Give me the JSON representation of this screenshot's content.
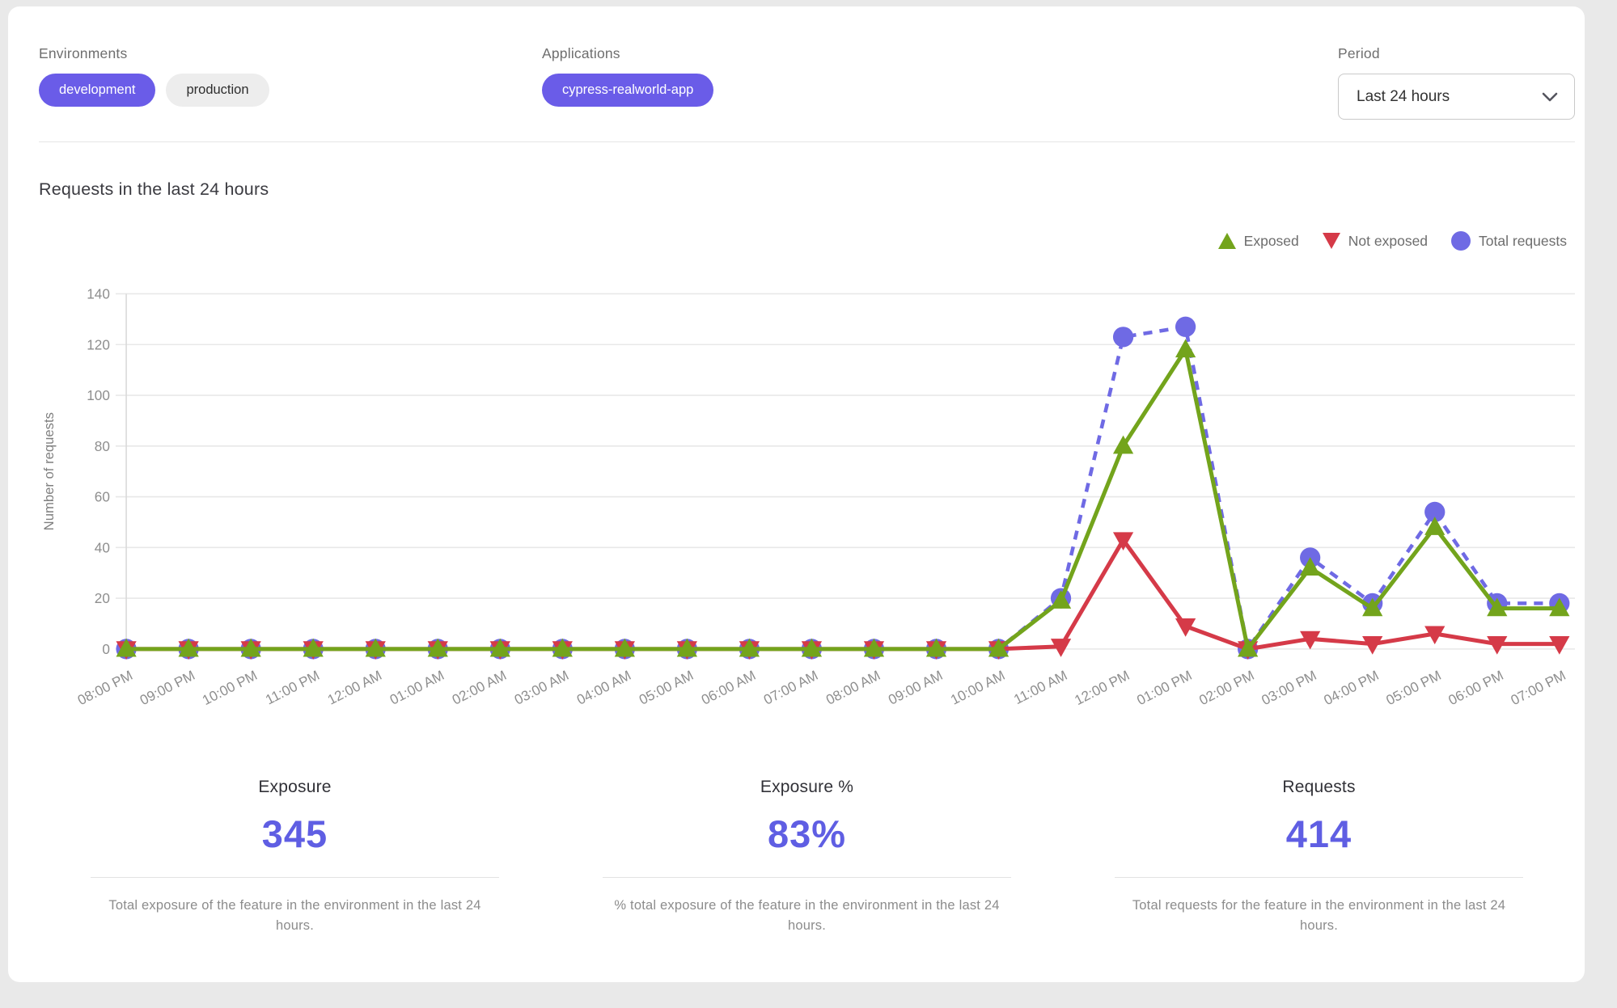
{
  "colors": {
    "accent_chip": "#6a5ce8",
    "accent_number": "#5f5ee3",
    "exposed_green": "#73a41c",
    "not_exposed_red": "#d53a48",
    "total_purple": "#6f6ae4",
    "grid": "#e8e8e8",
    "card_bg": "#ffffff",
    "page_bg": "#e9e9e9"
  },
  "filters": {
    "environments": {
      "label": "Environments",
      "chips": [
        {
          "label": "development",
          "selected": true
        },
        {
          "label": "production",
          "selected": false
        }
      ]
    },
    "applications": {
      "label": "Applications",
      "chips": [
        {
          "label": "cypress-realworld-app",
          "selected": true
        }
      ]
    },
    "period": {
      "label": "Period",
      "selected_option": "Last 24 hours"
    }
  },
  "chart_section": {
    "title": "Requests in the last 24 hours"
  },
  "chart_data": {
    "type": "line",
    "title": "Requests in the last 24 hours",
    "xlabel": "",
    "ylabel": "Number of requests",
    "ylim": [
      0,
      140
    ],
    "ytick_step": 20,
    "grid": true,
    "legend_position": "top-right",
    "categories": [
      "08:00 PM",
      "09:00 PM",
      "10:00 PM",
      "11:00 PM",
      "12:00 AM",
      "01:00 AM",
      "02:00 AM",
      "03:00 AM",
      "04:00 AM",
      "05:00 AM",
      "06:00 AM",
      "07:00 AM",
      "08:00 AM",
      "09:00 AM",
      "10:00 AM",
      "11:00 AM",
      "12:00 PM",
      "01:00 PM",
      "02:00 PM",
      "03:00 PM",
      "04:00 PM",
      "05:00 PM",
      "06:00 PM",
      "07:00 PM"
    ],
    "series": [
      {
        "name": "Exposed",
        "key": "exposed",
        "color": "#73a41c",
        "marker": "triangle-up",
        "style": "solid",
        "values": [
          0,
          0,
          0,
          0,
          0,
          0,
          0,
          0,
          0,
          0,
          0,
          0,
          0,
          0,
          0,
          19,
          80,
          118,
          0,
          32,
          16,
          48,
          16,
          16
        ]
      },
      {
        "name": "Not exposed",
        "key": "not-exposed",
        "color": "#d53a48",
        "marker": "triangle-down",
        "style": "solid",
        "values": [
          0,
          0,
          0,
          0,
          0,
          0,
          0,
          0,
          0,
          0,
          0,
          0,
          0,
          0,
          0,
          1,
          43,
          9,
          0,
          4,
          2,
          6,
          2,
          2
        ]
      },
      {
        "name": "Total requests",
        "key": "total-requests",
        "color": "#6f6ae4",
        "marker": "circle",
        "style": "dashed",
        "values": [
          0,
          0,
          0,
          0,
          0,
          0,
          0,
          0,
          0,
          0,
          0,
          0,
          0,
          0,
          0,
          20,
          123,
          127,
          0,
          36,
          18,
          54,
          18,
          18
        ]
      }
    ]
  },
  "stats": [
    {
      "title": "Exposure",
      "value": "345",
      "description": "Total exposure of the feature in the environment in the last 24 hours."
    },
    {
      "title": "Exposure %",
      "value": "83%",
      "description": "% total exposure of the feature in the environment in the last 24 hours."
    },
    {
      "title": "Requests",
      "value": "414",
      "description": "Total requests for the feature in the environment in the last 24 hours."
    }
  ]
}
